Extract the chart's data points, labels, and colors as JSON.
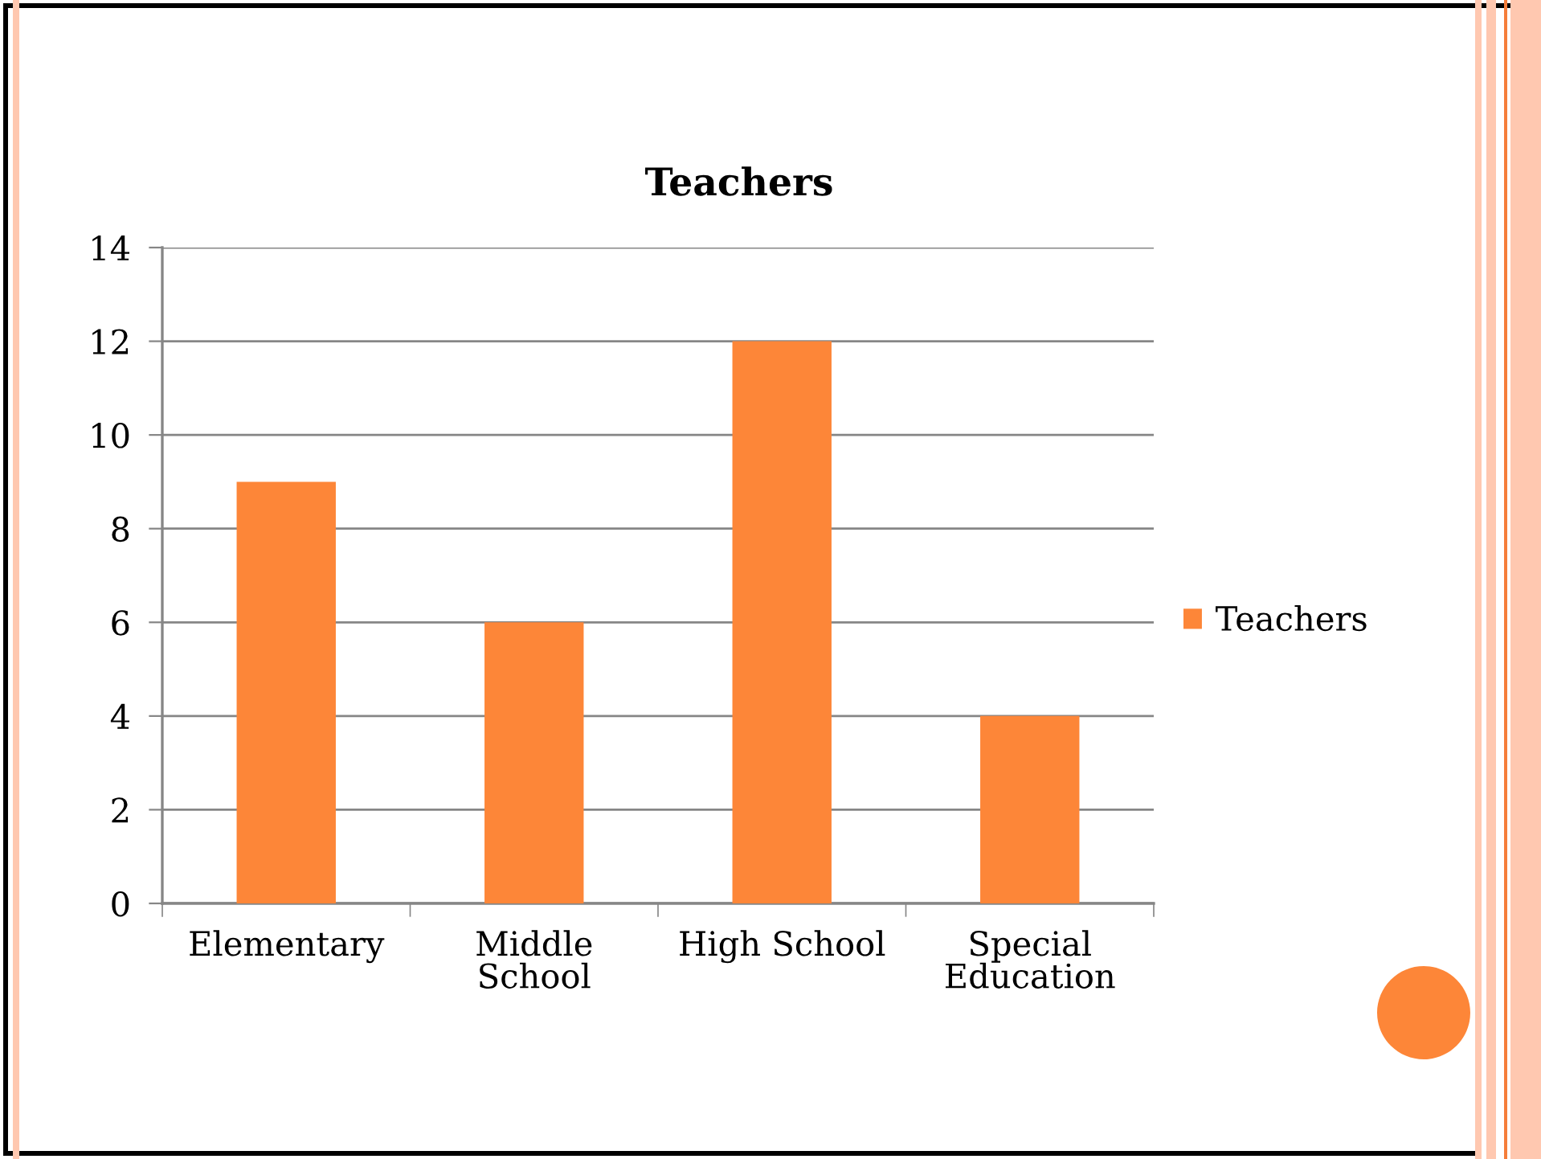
{
  "chart_data": {
    "type": "bar",
    "title": "Teachers",
    "categories": [
      "Elementary",
      "Middle School",
      "High School",
      "Special Education"
    ],
    "series": [
      {
        "name": "Teachers",
        "color": "#fd8638",
        "values": [
          9,
          6,
          12,
          4
        ]
      }
    ],
    "ylim": [
      0,
      14
    ],
    "yticks": [
      0,
      2,
      4,
      6,
      8,
      10,
      12,
      14
    ],
    "grid": "y",
    "legend": "right"
  }
}
